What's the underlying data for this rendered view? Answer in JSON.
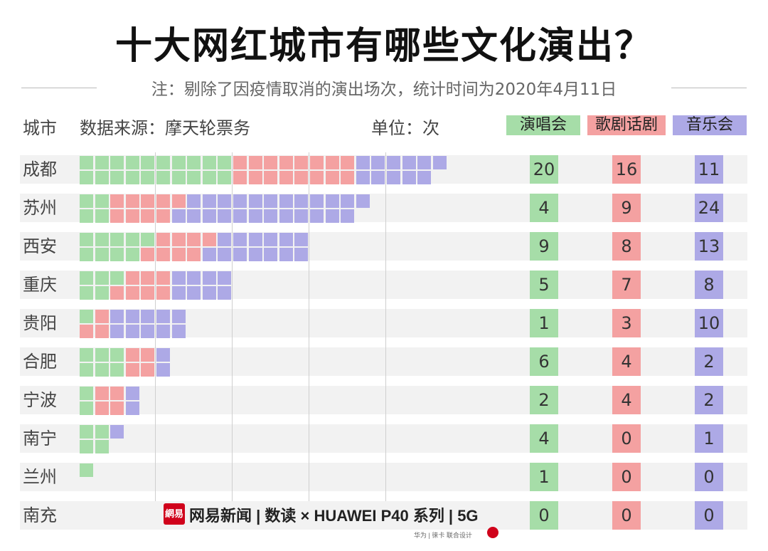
{
  "title": "十大网红城市有哪些文化演出？",
  "subtitle": "注：剔除了因疫情取消的演出场次，统计时间为2020年4月11日",
  "header": {
    "city_label": "城市",
    "source": "数据来源：摩天轮票务",
    "unit": "单位：次"
  },
  "brand": {
    "logo_text": "網易",
    "text": "网易新闻 | 数读  ×  HUAWEI  P40 系列 | 5G",
    "sub": "华为 | 徕卡  联合设计"
  },
  "colors": {
    "concert": "#a6dda8",
    "drama": "#f4a1a1",
    "music": "#ada9e6",
    "row_bg": "#f2f2f2"
  },
  "chart_data": {
    "type": "bar",
    "stacked": true,
    "orientation": "horizontal",
    "categories": [
      "成都",
      "苏州",
      "西安",
      "重庆",
      "贵阳",
      "合肥",
      "宁波",
      "南宁",
      "兰州",
      "南充"
    ],
    "series": [
      {
        "name": "演唱会",
        "values": [
          20,
          4,
          9,
          5,
          1,
          6,
          2,
          4,
          1,
          0
        ]
      },
      {
        "name": "歌剧话剧",
        "values": [
          16,
          9,
          8,
          7,
          3,
          4,
          4,
          0,
          0,
          0
        ]
      },
      {
        "name": "音乐会",
        "values": [
          11,
          24,
          13,
          8,
          10,
          2,
          2,
          1,
          0,
          0
        ]
      }
    ],
    "grid": true
  }
}
